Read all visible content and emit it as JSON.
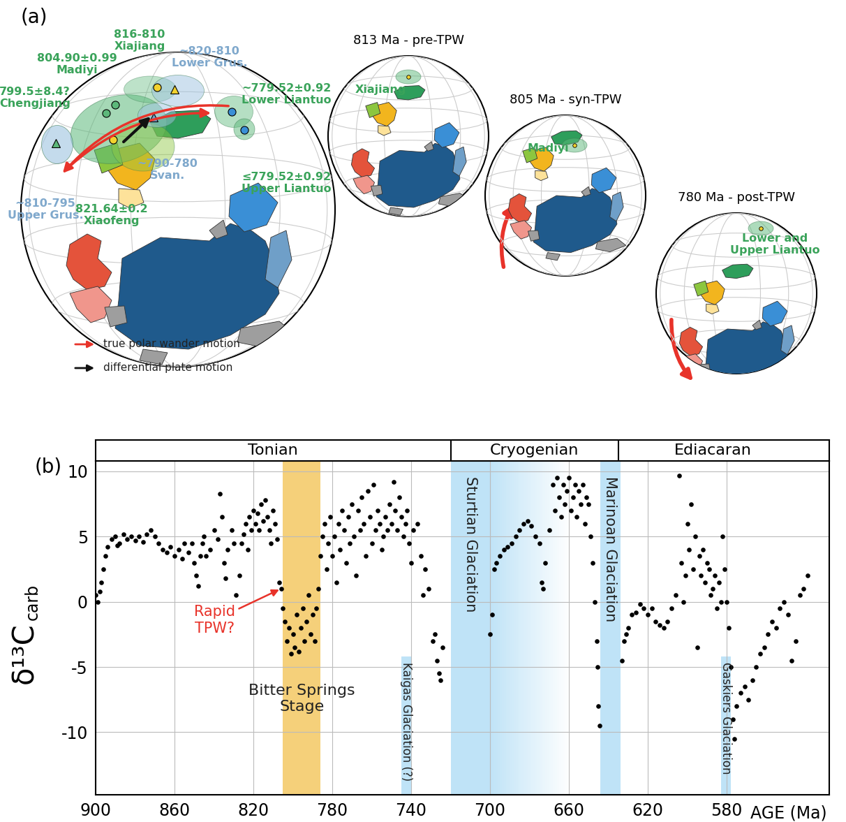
{
  "panel_a": {
    "label": "(a)",
    "main_globe": {
      "labels": [
        {
          "text": "816-810\nXiajiang",
          "color": "#3aa35a"
        },
        {
          "text": "804.90±0.99\nMadiyi",
          "color": "#3aa35a"
        },
        {
          "text": "799.5±8.4?\nChengjiang",
          "color": "#3aa35a"
        },
        {
          "text": "~820-810\nLower Grus.",
          "color": "#7fa8cc"
        },
        {
          "text": "~779.52±0.92\nLower Liantuo",
          "color": "#3aa35a"
        },
        {
          "text": "~810-795\nUpper Grus.",
          "color": "#7fa8cc"
        },
        {
          "text": "821.64±0.2\nXiaofeng",
          "color": "#3aa35a"
        },
        {
          "text": "~790-780\nSvan.",
          "color": "#7fa8cc"
        },
        {
          "text": "≤779.52±0.92\nUpper Liantuo",
          "color": "#3aa35a"
        }
      ]
    },
    "legend": [
      {
        "text": "true polar wander motion",
        "color": "#e8332a"
      },
      {
        "text": "differential plate motion",
        "color": "#111111"
      }
    ],
    "globes": [
      {
        "title": "813 Ma - pre-TPW",
        "label": "Xiajiang"
      },
      {
        "title": "805 Ma - syn-TPW",
        "label": "Madiyi"
      },
      {
        "title": "780 Ma - post-TPW",
        "label": "Lower and\nUpper Liantuo"
      }
    ]
  },
  "chart_data": {
    "type": "scatter",
    "panel_label": "(b)",
    "xlabel": "AGE (Ma)",
    "ylabel": "δ¹³C",
    "ylabel_sub": "carb",
    "x": [
      900,
      899,
      898,
      897,
      896,
      895,
      894,
      892,
      890,
      889,
      888,
      886,
      884,
      882,
      880,
      878,
      876,
      874,
      872,
      870,
      868,
      866,
      864,
      862,
      860,
      858,
      856,
      855,
      853,
      851,
      850,
      849,
      848,
      847,
      846,
      845,
      844,
      842,
      840,
      838,
      837,
      836,
      835,
      834,
      833,
      831,
      830,
      829,
      827,
      826,
      825,
      824,
      823,
      822,
      821,
      820,
      819,
      818,
      817,
      816,
      815,
      814,
      813,
      812,
      811,
      810,
      809,
      808,
      807,
      806,
      805,
      804,
      803,
      802,
      801,
      800,
      799,
      798,
      797,
      796,
      795,
      794,
      793,
      792,
      791,
      790,
      789,
      788,
      787,
      786,
      785,
      784,
      783,
      782,
      781,
      780,
      779,
      778,
      777,
      776,
      775,
      774,
      773,
      772,
      771,
      770,
      769,
      768,
      767,
      766,
      765,
      764,
      763,
      762,
      761,
      760,
      759,
      758,
      757,
      756,
      755,
      754,
      753,
      752,
      751,
      750,
      749,
      748,
      747,
      746,
      745,
      744,
      743,
      742,
      741,
      740,
      739,
      737,
      735,
      734,
      733,
      731,
      729,
      728,
      727,
      726,
      725,
      724,
      700,
      699,
      698,
      697,
      695,
      693,
      691,
      689,
      687,
      685,
      683,
      681,
      679,
      677,
      675,
      674,
      673,
      672,
      670,
      668,
      667,
      666,
      665,
      664,
      663,
      662,
      661,
      660,
      659,
      658,
      657,
      656,
      655,
      654,
      653,
      652,
      651,
      650,
      649,
      648,
      647,
      646,
      645.5,
      645,
      644.5,
      633,
      632,
      631,
      630,
      628,
      626,
      624,
      622,
      620,
      618,
      616,
      614,
      612,
      610,
      608,
      606,
      604,
      603,
      602,
      601,
      600,
      599,
      598,
      597,
      596,
      595,
      594,
      593,
      592,
      591,
      590,
      589,
      588,
      587,
      586,
      585,
      584,
      583,
      582,
      581,
      580,
      579,
      578,
      577,
      576,
      575,
      573,
      571,
      569,
      567,
      565,
      563,
      561,
      559,
      557,
      555,
      553,
      551,
      549,
      547,
      545,
      543,
      541,
      539
    ],
    "values": [
      0.5,
      0.0,
      0.8,
      1.5,
      2.5,
      3.5,
      4.2,
      4.8,
      5.0,
      4.3,
      4.5,
      5.2,
      4.8,
      5.0,
      4.7,
      5.0,
      4.6,
      5.2,
      5.5,
      5.0,
      4.5,
      4.0,
      3.8,
      4.2,
      3.5,
      4.0,
      3.3,
      4.5,
      3.8,
      4.5,
      3.0,
      2.0,
      1.2,
      3.5,
      4.5,
      5.0,
      3.5,
      4.0,
      5.5,
      4.8,
      8.3,
      6.5,
      3.0,
      1.8,
      4.0,
      5.5,
      4.5,
      0.5,
      2.0,
      4.5,
      5.2,
      6.0,
      4.0,
      6.5,
      5.5,
      7.0,
      6.0,
      6.8,
      5.5,
      7.5,
      6.2,
      7.8,
      6.5,
      5.5,
      4.5,
      7.0,
      6.0,
      4.8,
      1.5,
      1.0,
      -0.5,
      -1.5,
      -3.0,
      -2.0,
      -4.0,
      -2.5,
      -3.5,
      -1.0,
      -3.8,
      -2.0,
      -0.5,
      -3.0,
      -1.5,
      0.5,
      -2.5,
      -1.0,
      -3.0,
      -0.5,
      1.0,
      3.5,
      5.0,
      6.0,
      2.5,
      4.5,
      6.5,
      3.5,
      5.0,
      1.5,
      6.0,
      4.0,
      7.0,
      5.5,
      3.0,
      6.5,
      4.5,
      7.5,
      5.0,
      2.0,
      7.0,
      5.5,
      8.0,
      6.0,
      3.5,
      8.5,
      6.5,
      4.5,
      9.0,
      5.5,
      7.0,
      6.0,
      4.0,
      5.0,
      6.5,
      5.5,
      7.5,
      6.0,
      9.2,
      7.0,
      5.5,
      8.0,
      6.5,
      5.0,
      6.0,
      7.0,
      4.5,
      3.0,
      5.5,
      6.0,
      3.5,
      0.5,
      2.5,
      1.0,
      -3.0,
      -2.5,
      -4.5,
      -5.5,
      -6.0,
      -3.5,
      -2.5,
      -1.0,
      2.5,
      3.0,
      3.5,
      4.0,
      4.2,
      4.5,
      5.0,
      5.5,
      6.0,
      6.2,
      5.8,
      5.0,
      4.5,
      1.5,
      1.0,
      3.0,
      5.5,
      9.0,
      7.0,
      9.5,
      8.0,
      6.5,
      9.0,
      7.5,
      8.5,
      9.5,
      7.0,
      8.0,
      9.0,
      6.5,
      8.5,
      7.5,
      9.0,
      6.0,
      8.0,
      7.5,
      5.0,
      3.0,
      0.0,
      -3.0,
      -5.0,
      -8.0,
      -9.5,
      -4.5,
      -3.0,
      -2.5,
      -2.0,
      -1.0,
      -0.8,
      -0.2,
      -0.5,
      -1.0,
      -0.5,
      -1.5,
      -1.8,
      -2.0,
      -1.5,
      -0.5,
      0.5,
      9.7,
      3.0,
      0.0,
      2.0,
      6.0,
      4.0,
      7.5,
      2.5,
      5.0,
      -3.5,
      3.5,
      2.0,
      4.0,
      1.5,
      3.0,
      2.5,
      0.5,
      1.0,
      2.0,
      -0.5,
      1.5,
      0.0,
      5.0,
      2.5,
      0.0,
      -2.0,
      -5.0,
      -9.0,
      -10.5,
      -8.0,
      -7.0,
      -6.5,
      -7.5,
      -6.0,
      -5.0,
      -4.0,
      -3.5,
      -2.5,
      -1.5,
      -2.0,
      -0.5,
      0.0,
      -1.0,
      -4.5,
      -3.0,
      0.5,
      1.0,
      2.0
    ],
    "color": "#000000",
    "marker": "o",
    "xlim": [
      900,
      528
    ],
    "ylim": [
      -14.8,
      10.8
    ],
    "xticks": [
      900,
      860,
      820,
      780,
      740,
      700,
      660,
      620,
      580
    ],
    "yticks": [
      10,
      5,
      0,
      -5,
      -10
    ],
    "grid": true,
    "periods": [
      {
        "name": "Tonian",
        "range": [
          900,
          720
        ]
      },
      {
        "name": "Cryogenian",
        "range": [
          720,
          635
        ]
      },
      {
        "name": "Ediacaran",
        "range": [
          635,
          539
        ]
      }
    ],
    "bands": [
      {
        "label": "Bitter Springs\nStage",
        "range": [
          805,
          786
        ],
        "color": "#f5d07a"
      },
      {
        "label": "Kaigas Glaciation (?)",
        "range": [
          745,
          740
        ],
        "y_top": -4.2,
        "color": "#bfe3f7"
      },
      {
        "label": "Sturtian Glaciation",
        "range": [
          720,
          700
        ],
        "fade_to": 660,
        "color": "#bfe3f7"
      },
      {
        "label": "Marinoan Glaciation",
        "range": [
          644,
          634
        ],
        "color": "#bfe3f7"
      },
      {
        "label": "Gaskiers Glaciation",
        "range": [
          583,
          578
        ],
        "y_top": -4.2,
        "color": "#bfe3f7"
      }
    ],
    "annotations": [
      {
        "text": "Rapid\nTPW?",
        "xy": [
          806,
          1.0
        ],
        "color": "#e8332a"
      }
    ]
  }
}
